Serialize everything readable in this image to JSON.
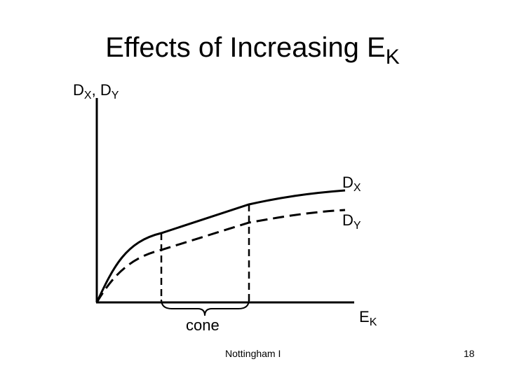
{
  "title": {
    "main": "Effects of Increasing E",
    "sub": "K"
  },
  "y_axis_label": {
    "d1": "D",
    "s1": "X",
    "sep": ",",
    "d2": "D",
    "s2": "Y"
  },
  "curves": [
    {
      "main": "D",
      "sub": "X",
      "style": "solid"
    },
    {
      "main": "D",
      "sub": "Y",
      "style": "dashed"
    }
  ],
  "x_axis_label": {
    "main": "E",
    "sub": "K"
  },
  "bracket_label": "cone",
  "footer": {
    "source": "Nottingham I",
    "page": "18"
  }
}
